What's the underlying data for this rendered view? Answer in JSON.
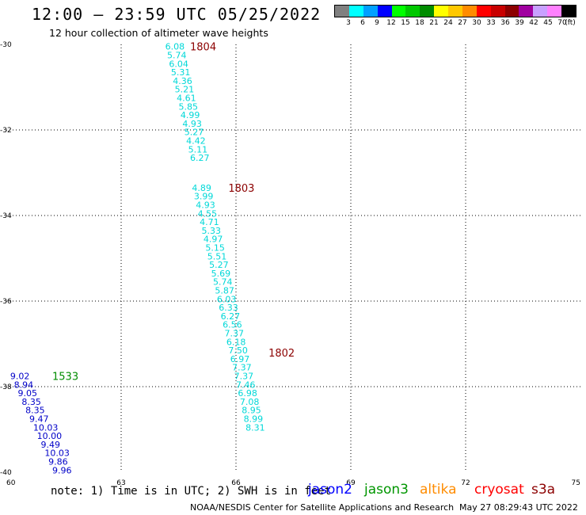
{
  "header": {
    "title": "12:00 — 23:59 UTC 05/25/2022",
    "subtitle": "12 hour collection of altimeter wave heights"
  },
  "legend": {
    "unit": "(ft)",
    "colors": [
      "#808080",
      "#00ffff",
      "#00a0ff",
      "#0000ff",
      "#00ff00",
      "#00c800",
      "#008c00",
      "#ffff00",
      "#ffc800",
      "#ff8c00",
      "#ff0000",
      "#c80000",
      "#8c0000",
      "#a000a0",
      "#c8a0ff",
      "#ff80ff",
      "#000000"
    ],
    "labels": [
      "3",
      "6",
      "9",
      "12",
      "15",
      "18",
      "21",
      "24",
      "27",
      "30",
      "33",
      "36",
      "39",
      "42",
      "45",
      "70"
    ]
  },
  "axes": {
    "y_ticks": [
      {
        "value": -30,
        "label": "-30"
      },
      {
        "value": -32,
        "label": "-32"
      },
      {
        "value": -34,
        "label": "-34"
      },
      {
        "value": -36,
        "label": "-36"
      },
      {
        "value": -38,
        "label": "-38"
      },
      {
        "value": -40,
        "label": "-40"
      }
    ],
    "x_ticks": [
      {
        "value": 60,
        "label": "60"
      },
      {
        "value": 63,
        "label": "63"
      },
      {
        "value": 66,
        "label": "66"
      },
      {
        "value": 69,
        "label": "69"
      },
      {
        "value": 72,
        "label": "72"
      },
      {
        "value": 75,
        "label": "75"
      }
    ],
    "lon_range": [
      60,
      75
    ],
    "lat_range": [
      -40,
      -30
    ]
  },
  "passes": [
    {
      "time": "1804",
      "lon": 64.8,
      "lat": -30.05,
      "color": "#8c0000"
    },
    {
      "time": "1803",
      "lon": 65.8,
      "lat": -33.35,
      "color": "#8c0000"
    },
    {
      "time": "1802",
      "lon": 66.85,
      "lat": -37.2,
      "color": "#8c0000"
    },
    {
      "time": "1533",
      "lon": 61.2,
      "lat": -37.75,
      "color": "#008c00"
    }
  ],
  "observations": [
    {
      "lon": 64.15,
      "lat": -30.05,
      "swh": "6.08",
      "color": "#00d8d8"
    },
    {
      "lon": 64.2,
      "lat": -30.25,
      "swh": "5.74",
      "color": "#00d8d8"
    },
    {
      "lon": 64.25,
      "lat": -30.45,
      "swh": "6.04",
      "color": "#00d8d8"
    },
    {
      "lon": 64.3,
      "lat": -30.65,
      "swh": "5.31",
      "color": "#00d8d8"
    },
    {
      "lon": 64.35,
      "lat": -30.85,
      "swh": "4.36",
      "color": "#00d8d8"
    },
    {
      "lon": 64.4,
      "lat": -31.05,
      "swh": "5.21",
      "color": "#00d8d8"
    },
    {
      "lon": 64.45,
      "lat": -31.25,
      "swh": "4.61",
      "color": "#00d8d8"
    },
    {
      "lon": 64.5,
      "lat": -31.45,
      "swh": "5.85",
      "color": "#00d8d8"
    },
    {
      "lon": 64.55,
      "lat": -31.65,
      "swh": "4.99",
      "color": "#00d8d8"
    },
    {
      "lon": 64.6,
      "lat": -31.85,
      "swh": "4.93",
      "color": "#00d8d8"
    },
    {
      "lon": 64.65,
      "lat": -32.05,
      "swh": "5.27",
      "color": "#00d8d8"
    },
    {
      "lon": 64.7,
      "lat": -32.25,
      "swh": "4.42",
      "color": "#00d8d8"
    },
    {
      "lon": 64.75,
      "lat": -32.45,
      "swh": "5.11",
      "color": "#00d8d8"
    },
    {
      "lon": 64.8,
      "lat": -32.65,
      "swh": "6.27",
      "color": "#00d8d8"
    },
    {
      "lon": 64.85,
      "lat": -33.35,
      "swh": "4.89",
      "color": "#00d8d8"
    },
    {
      "lon": 64.9,
      "lat": -33.55,
      "swh": "3.99",
      "color": "#00d8d8"
    },
    {
      "lon": 64.95,
      "lat": -33.75,
      "swh": "4.93",
      "color": "#00d8d8"
    },
    {
      "lon": 65.0,
      "lat": -33.95,
      "swh": "4.55",
      "color": "#00d8d8"
    },
    {
      "lon": 65.05,
      "lat": -34.15,
      "swh": "4.71",
      "color": "#00d8d8"
    },
    {
      "lon": 65.1,
      "lat": -34.35,
      "swh": "5.33",
      "color": "#00d8d8"
    },
    {
      "lon": 65.15,
      "lat": -34.55,
      "swh": "4.97",
      "color": "#00d8d8"
    },
    {
      "lon": 65.2,
      "lat": -34.75,
      "swh": "5.15",
      "color": "#00d8d8"
    },
    {
      "lon": 65.25,
      "lat": -34.95,
      "swh": "5.51",
      "color": "#00d8d8"
    },
    {
      "lon": 65.3,
      "lat": -35.15,
      "swh": "5.27",
      "color": "#00d8d8"
    },
    {
      "lon": 65.35,
      "lat": -35.35,
      "swh": "5.69",
      "color": "#00d8d8"
    },
    {
      "lon": 65.4,
      "lat": -35.55,
      "swh": "5.74",
      "color": "#00d8d8"
    },
    {
      "lon": 65.45,
      "lat": -35.75,
      "swh": "5.87",
      "color": "#00d8d8"
    },
    {
      "lon": 65.5,
      "lat": -35.95,
      "swh": "6.03",
      "color": "#00d8d8"
    },
    {
      "lon": 65.55,
      "lat": -36.15,
      "swh": "6.33",
      "color": "#00d8d8"
    },
    {
      "lon": 65.6,
      "lat": -36.35,
      "swh": "6.27",
      "color": "#00d8d8"
    },
    {
      "lon": 65.65,
      "lat": -36.55,
      "swh": "6.56",
      "color": "#00d8d8"
    },
    {
      "lon": 65.7,
      "lat": -36.75,
      "swh": "7.37",
      "color": "#00d8d8"
    },
    {
      "lon": 65.75,
      "lat": -36.95,
      "swh": "6.18",
      "color": "#00d8d8"
    },
    {
      "lon": 65.8,
      "lat": -37.15,
      "swh": "7.50",
      "color": "#00d8d8"
    },
    {
      "lon": 65.85,
      "lat": -37.35,
      "swh": "6.97",
      "color": "#00d8d8"
    },
    {
      "lon": 65.9,
      "lat": -37.55,
      "swh": "7.37",
      "color": "#00d8d8"
    },
    {
      "lon": 65.95,
      "lat": -37.75,
      "swh": "7.37",
      "color": "#00d8d8"
    },
    {
      "lon": 66.0,
      "lat": -37.95,
      "swh": "7.46",
      "color": "#00d8d8"
    },
    {
      "lon": 66.05,
      "lat": -38.15,
      "swh": "6.98",
      "color": "#00d8d8"
    },
    {
      "lon": 66.1,
      "lat": -38.35,
      "swh": "7.08",
      "color": "#00d8d8"
    },
    {
      "lon": 66.15,
      "lat": -38.55,
      "swh": "8.95",
      "color": "#00d8d8"
    },
    {
      "lon": 66.2,
      "lat": -38.75,
      "swh": "8.99",
      "color": "#00d8d8"
    },
    {
      "lon": 66.25,
      "lat": -38.95,
      "swh": "8.31",
      "color": "#00d8d8"
    },
    {
      "lon": 60.1,
      "lat": -37.75,
      "swh": "9.02",
      "color": "#0000c8"
    },
    {
      "lon": 60.2,
      "lat": -37.95,
      "swh": "8.94",
      "color": "#0000c8"
    },
    {
      "lon": 60.3,
      "lat": -38.15,
      "swh": "9.05",
      "color": "#0000c8"
    },
    {
      "lon": 60.4,
      "lat": -38.35,
      "swh": "8.35",
      "color": "#0000c8"
    },
    {
      "lon": 60.5,
      "lat": -38.55,
      "swh": "8.35",
      "color": "#0000c8"
    },
    {
      "lon": 60.6,
      "lat": -38.75,
      "swh": "9.47",
      "color": "#0000c8"
    },
    {
      "lon": 60.7,
      "lat": -38.95,
      "swh": "10.03",
      "color": "#0000c8"
    },
    {
      "lon": 60.8,
      "lat": -39.15,
      "swh": "10.00",
      "color": "#0000c8"
    },
    {
      "lon": 60.9,
      "lat": -39.35,
      "swh": "9.49",
      "color": "#0000c8"
    },
    {
      "lon": 61.0,
      "lat": -39.55,
      "swh": "10.03",
      "color": "#0000c8"
    },
    {
      "lon": 61.1,
      "lat": -39.75,
      "swh": "9.86",
      "color": "#0000c8"
    },
    {
      "lon": 61.2,
      "lat": -39.95,
      "swh": "9.96",
      "color": "#0000c8"
    }
  ],
  "footer": {
    "note": "note: 1) Time is in UTC; 2) SWH is in feet",
    "satellites": [
      {
        "label": "jason2",
        "color": "#0000ff"
      },
      {
        "label": "jason3",
        "color": "#009600"
      },
      {
        "label": "altika",
        "color": "#ff8c00"
      },
      {
        "label": "cryosat",
        "color": "#ff0000"
      },
      {
        "label": "s3a",
        "color": "#8c0000"
      }
    ],
    "credit": "NOAA/NESDIS Center for Satellite Applications and Research",
    "timestamp": "May 27 08:29:43 UTC 2022"
  }
}
